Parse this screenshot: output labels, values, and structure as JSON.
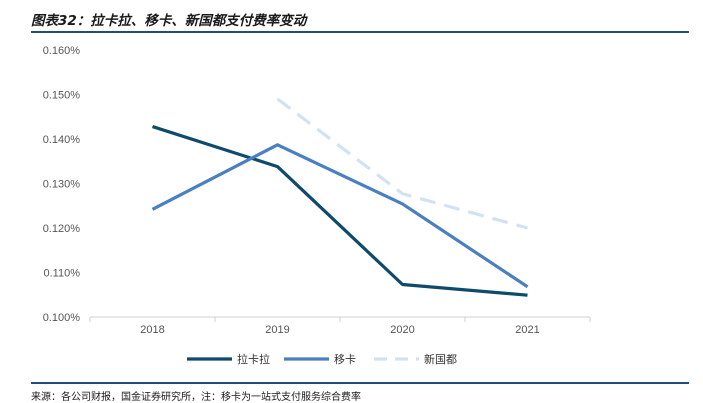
{
  "figure": {
    "title": "图表32：拉卡拉、移卡、新国都支付费率变动",
    "source": "来源：各公司财报，国金证券研究所，注：移卡为一站式支付服务综合费率"
  },
  "chart_data": {
    "type": "line",
    "categories": [
      "2018",
      "2019",
      "2020",
      "2021"
    ],
    "y_ticks": [
      "0.100%",
      "0.110%",
      "0.120%",
      "0.130%",
      "0.140%",
      "0.150%",
      "0.160%"
    ],
    "ylim": [
      0.1,
      0.16
    ],
    "grid": false,
    "legend_position": "bottom",
    "series": [
      {
        "name": "拉卡拉",
        "values": [
          0.1428,
          0.1338,
          0.1073,
          0.1049
        ],
        "color": "#0d4a6b",
        "dash": "solid"
      },
      {
        "name": "移卡",
        "values": [
          0.1242,
          0.1387,
          0.1254,
          0.1068
        ],
        "color": "#4a7fc1",
        "dash": "solid"
      },
      {
        "name": "新国都",
        "values": [
          null,
          0.149,
          0.1277,
          0.12
        ],
        "color": "#d3e2f1",
        "dash": "dashed"
      }
    ]
  }
}
